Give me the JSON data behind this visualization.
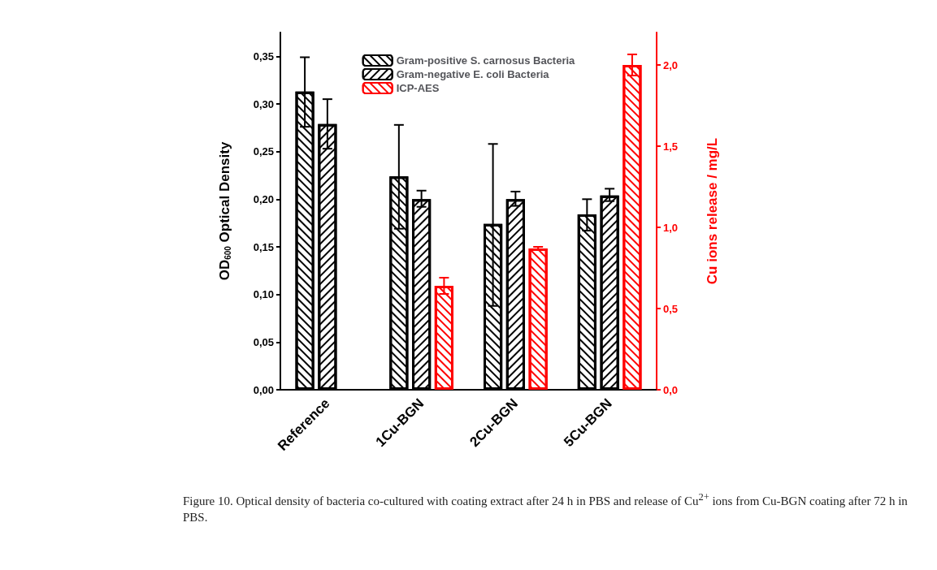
{
  "chart_data": {
    "type": "bar",
    "categories": [
      "Reference",
      "1Cu-BGN",
      "2Cu-BGN",
      "5Cu-BGN"
    ],
    "series": [
      {
        "name": "Gram-positive S. carnosus Bacteria",
        "color": "#000000",
        "values": [
          0.313,
          0.224,
          0.174,
          0.184
        ],
        "errors": [
          [
            0.276,
            0.349
          ],
          [
            0.169,
            0.278
          ],
          [
            0.088,
            0.258
          ],
          [
            0.167,
            0.2
          ]
        ]
      },
      {
        "name": "Gram-negative E. coli Bacteria",
        "color": "#000000",
        "values": [
          0.279,
          0.2,
          0.2,
          0.204
        ],
        "errors": [
          [
            0.253,
            0.305
          ],
          [
            0.192,
            0.209
          ],
          [
            0.193,
            0.208
          ],
          [
            0.198,
            0.211
          ]
        ]
      },
      {
        "name": "ICP-AES",
        "color": "#ff0000",
        "axis": "y2",
        "values": [
          null,
          0.64,
          0.87,
          2.0
        ],
        "errors": [
          null,
          0.05,
          0.01,
          0.065
        ]
      }
    ],
    "ylabel": "OD$_{600}$ Optical Density",
    "y2label": "Cu ions release / mg/L",
    "ylim": [
      0,
      0.375
    ],
    "yticks": [
      {
        "value": 0,
        "label": "0,00"
      },
      {
        "value": 0.05,
        "label": "0,05"
      },
      {
        "value": 0.1,
        "label": "0,10"
      },
      {
        "value": 0.15,
        "label": "0,15"
      },
      {
        "value": 0.2,
        "label": "0,20"
      },
      {
        "value": 0.25,
        "label": "0,25"
      },
      {
        "value": 0.3,
        "label": "0,30"
      },
      {
        "value": 0.35,
        "label": "0,35"
      }
    ],
    "y2lim": [
      0,
      2.2
    ],
    "y2ticks": [
      {
        "value": 0,
        "label": "0,0"
      },
      {
        "value": 0.5,
        "label": "0,5"
      },
      {
        "value": 1,
        "label": "1,0"
      },
      {
        "value": 1.5,
        "label": "1,5"
      },
      {
        "value": 2,
        "label": "2,0"
      }
    ],
    "legend": "top",
    "grid": false,
    "annotations": [
      "Figure 10. Optical density of bacteria co-cultured with coating extract after 24 h in PBS and release of Cu$^{2+}$ ions from Cu-BGN coating after 72 h in PBS."
    ]
  }
}
